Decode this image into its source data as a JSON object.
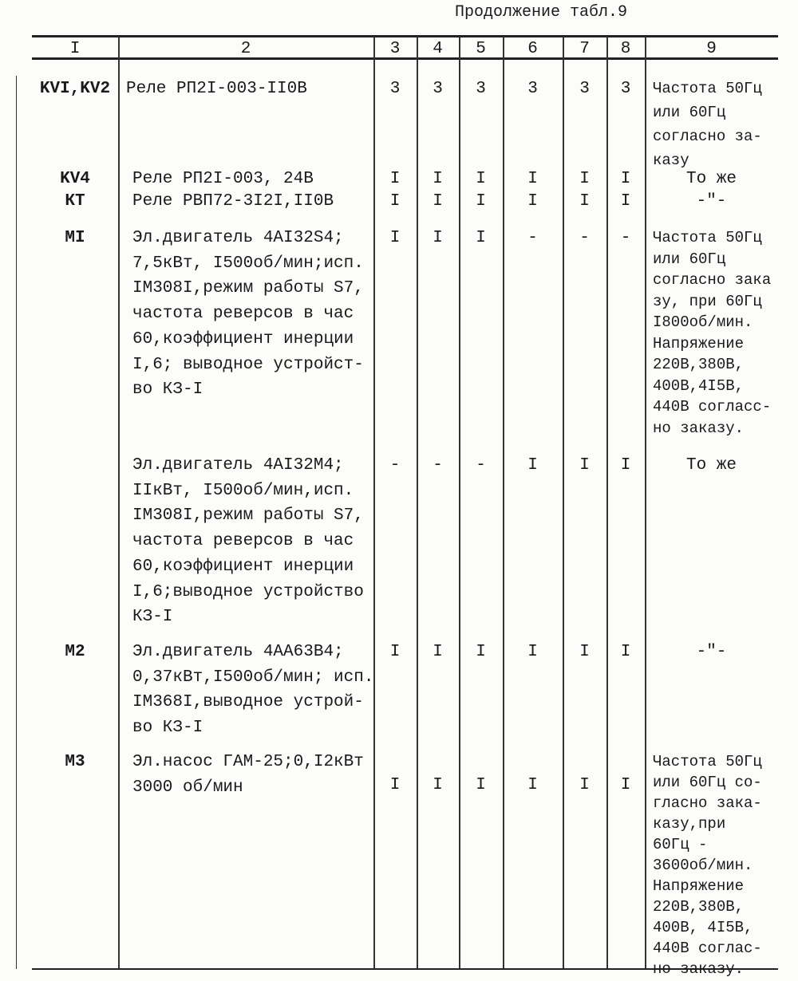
{
  "caption": "Продолжение табл.9",
  "columns": [
    "I",
    "2",
    "3",
    "4",
    "5",
    "6",
    "7",
    "8",
    "9"
  ],
  "rows": [
    {
      "pos": "KVI,KV2",
      "desc": [
        "Реле РП2I-003-II0В"
      ],
      "vals": [
        "3",
        "3",
        "3",
        "3",
        "3",
        "3"
      ],
      "note": [
        "Частота 50Гц",
        "или 60Гц",
        "согласно за-",
        "казу"
      ]
    },
    {
      "pos": "KV4",
      "desc": [
        "Реле РП2I-003, 24В"
      ],
      "vals": [
        "I",
        "I",
        "I",
        "I",
        "I",
        "I"
      ],
      "note": [
        "То же"
      ]
    },
    {
      "pos": "КТ",
      "desc": [
        "Реле РВП72-3I2I,II0В"
      ],
      "vals": [
        "I",
        "I",
        "I",
        "I",
        "I",
        "I"
      ],
      "note": [
        "-\"-"
      ]
    },
    {
      "pos": "МI",
      "desc": [
        "Эл.двигатель 4АI32S4;",
        "7,5кВт, I500об/мин;исп.",
        "IМ308I,режим работы S7,",
        "частота реверсов в час",
        "60,коэффициент инерции",
        "I,6; выводное устройст-",
        "во КЗ-I"
      ],
      "vals": [
        "I",
        "I",
        "I",
        "-",
        "-",
        "-"
      ],
      "note": [
        "Частота 50Гц",
        "или 60Гц",
        "согласно зака",
        "зу, при 60Гц",
        "I800об/мин.",
        "Напряжение",
        "220В,380В,",
        "400В,4I5В,",
        "440В согласс-",
        "но заказу."
      ]
    },
    {
      "pos": "",
      "desc": [
        "Эл.двигатель 4АI32М4;",
        "IIкВт, I500об/мин,исп.",
        "IМ308I,режим работы S7,",
        "частота реверсов в час",
        "60,коэффициент инерции",
        "I,6;выводное устройство",
        "КЗ-I"
      ],
      "vals": [
        "-",
        "-",
        "-",
        "I",
        "I",
        "I"
      ],
      "note": [
        "То же"
      ]
    },
    {
      "pos": "М2",
      "desc": [
        "Эл.двигатель 4АА63В4;",
        "0,37кВт,I500об/мин; исп.",
        "IМ368I,выводное устрой-",
        "во КЗ-I"
      ],
      "vals": [
        "I",
        "I",
        "I",
        "I",
        "I",
        "I"
      ],
      "note": [
        "-\"-"
      ]
    },
    {
      "pos": "М3",
      "desc": [
        "Эл.насос ГАМ-25;0,I2кВт",
        "3000 об/мин"
      ],
      "vals": [
        "I",
        "I",
        "I",
        "I",
        "I",
        "I"
      ],
      "note": [
        "Частота 50Гц",
        "или 60Гц со-",
        "гласно зака-",
        "казу,при",
        "60Гц -",
        "3600об/мин.",
        "Напряжение",
        "220В,380В,",
        "400В, 4I5В,",
        "440В соглас-",
        "но заказу."
      ]
    }
  ]
}
